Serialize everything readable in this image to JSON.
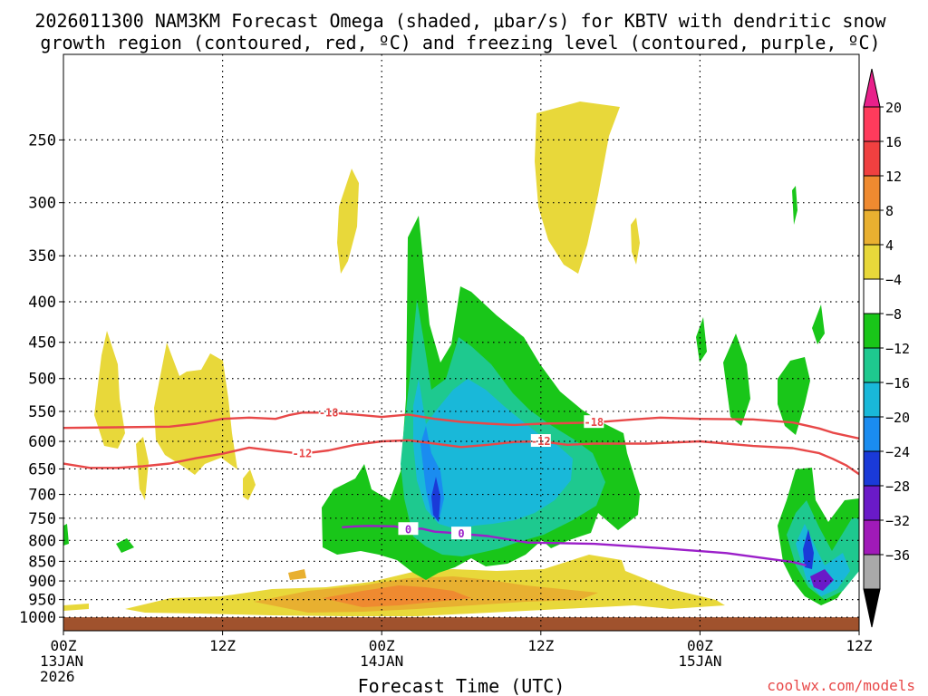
{
  "chart_data": {
    "type": "heatmap",
    "title_line1": "2026011300 NAM3KM Forecast Omega (shaded, μbar/s) for KBTV with dendritic snow",
    "title_line2": "growth region (contoured, red, ºC) and freezing level (contoured, purple, ºC)",
    "xlabel": "Forecast Time (UTC)",
    "ylabel": "",
    "credit": "coolwx.com/models",
    "x_range_hours": [
      0,
      60
    ],
    "x_ticks": [
      {
        "hour": 0,
        "labels": [
          "00Z",
          "13JAN",
          "2026"
        ]
      },
      {
        "hour": 12,
        "labels": [
          "12Z"
        ]
      },
      {
        "hour": 24,
        "labels": [
          "00Z",
          "14JAN"
        ]
      },
      {
        "hour": 36,
        "labels": [
          "12Z"
        ]
      },
      {
        "hour": 48,
        "labels": [
          "00Z",
          "15JAN"
        ]
      },
      {
        "hour": 60,
        "labels": [
          "12Z"
        ]
      }
    ],
    "y_scale": "log-pressure",
    "y_range_hpa": [
      1040,
      195
    ],
    "y_ticks_hpa": [
      250,
      300,
      350,
      400,
      450,
      500,
      550,
      600,
      650,
      700,
      750,
      800,
      850,
      900,
      950,
      1000
    ],
    "grid": true,
    "ground_color": "#a0522d",
    "ground_top_hpa": 1000,
    "colorbar": {
      "labels": [
        "20",
        "16",
        "12",
        "8",
        "4",
        "−4",
        "−8",
        "−12",
        "−16",
        "−20",
        "−24",
        "−28",
        "−32",
        "−36"
      ],
      "colors_top_to_bottom": [
        "#ff3b5c",
        "#f04040",
        "#ef8a30",
        "#e9b030",
        "#e8d83a",
        "#ffffff",
        "#19c619",
        "#1ec98f",
        "#19b8d9",
        "#1a8cf0",
        "#1a3ad8",
        "#6a1ac8",
        "#a01ab8",
        "#a9a9a9"
      ],
      "top_arrow_color": "#e8208a",
      "bottom_arrow_color": "#000000"
    },
    "series": [
      {
        "name": "-18",
        "kind": "dgz contour",
        "color": "#e84848",
        "points": [
          [
            0,
            577
          ],
          [
            4,
            576
          ],
          [
            8,
            575
          ],
          [
            10,
            570
          ],
          [
            12,
            562
          ],
          [
            14,
            560
          ],
          [
            16,
            562
          ],
          [
            17,
            556
          ],
          [
            18,
            552
          ],
          [
            20,
            552
          ],
          [
            22,
            555
          ],
          [
            24,
            559
          ],
          [
            26,
            555
          ],
          [
            28,
            562
          ],
          [
            30,
            567
          ],
          [
            32,
            570
          ],
          [
            34,
            572
          ],
          [
            36,
            570
          ],
          [
            40,
            568
          ],
          [
            43,
            563
          ],
          [
            45,
            560
          ],
          [
            48,
            562
          ],
          [
            52,
            563
          ],
          [
            55,
            568
          ],
          [
            57,
            578
          ],
          [
            58,
            585
          ],
          [
            60,
            595
          ]
        ]
      },
      {
        "name": "-12",
        "kind": "dgz contour",
        "color": "#e84848",
        "points": [
          [
            0,
            640
          ],
          [
            2,
            648
          ],
          [
            4,
            648
          ],
          [
            6,
            645
          ],
          [
            8,
            640
          ],
          [
            10,
            630
          ],
          [
            12,
            622
          ],
          [
            14,
            611
          ],
          [
            16,
            617
          ],
          [
            18,
            622
          ],
          [
            20,
            616
          ],
          [
            22,
            606
          ],
          [
            24,
            600
          ],
          [
            26,
            598
          ],
          [
            28,
            604
          ],
          [
            30,
            610
          ],
          [
            32,
            606
          ],
          [
            34,
            601
          ],
          [
            36,
            600
          ],
          [
            38,
            606
          ],
          [
            40,
            604
          ],
          [
            44,
            604
          ],
          [
            48,
            600
          ],
          [
            52,
            608
          ],
          [
            55,
            612
          ],
          [
            57,
            621
          ],
          [
            58,
            631
          ],
          [
            59,
            643
          ],
          [
            60,
            660
          ]
        ]
      },
      {
        "name": "0",
        "kind": "freezing level",
        "color": "#9b1fc9",
        "points": [
          [
            21,
            770
          ],
          [
            22,
            768
          ],
          [
            23,
            767
          ],
          [
            25,
            768
          ],
          [
            26,
            775
          ],
          [
            27,
            773
          ],
          [
            28,
            780
          ],
          [
            29,
            782
          ],
          [
            30,
            785
          ],
          [
            32,
            790
          ],
          [
            35,
            805
          ],
          [
            40,
            808
          ],
          [
            45,
            818
          ],
          [
            50,
            830
          ],
          [
            55,
            852
          ],
          [
            56,
            860
          ]
        ]
      }
    ]
  }
}
